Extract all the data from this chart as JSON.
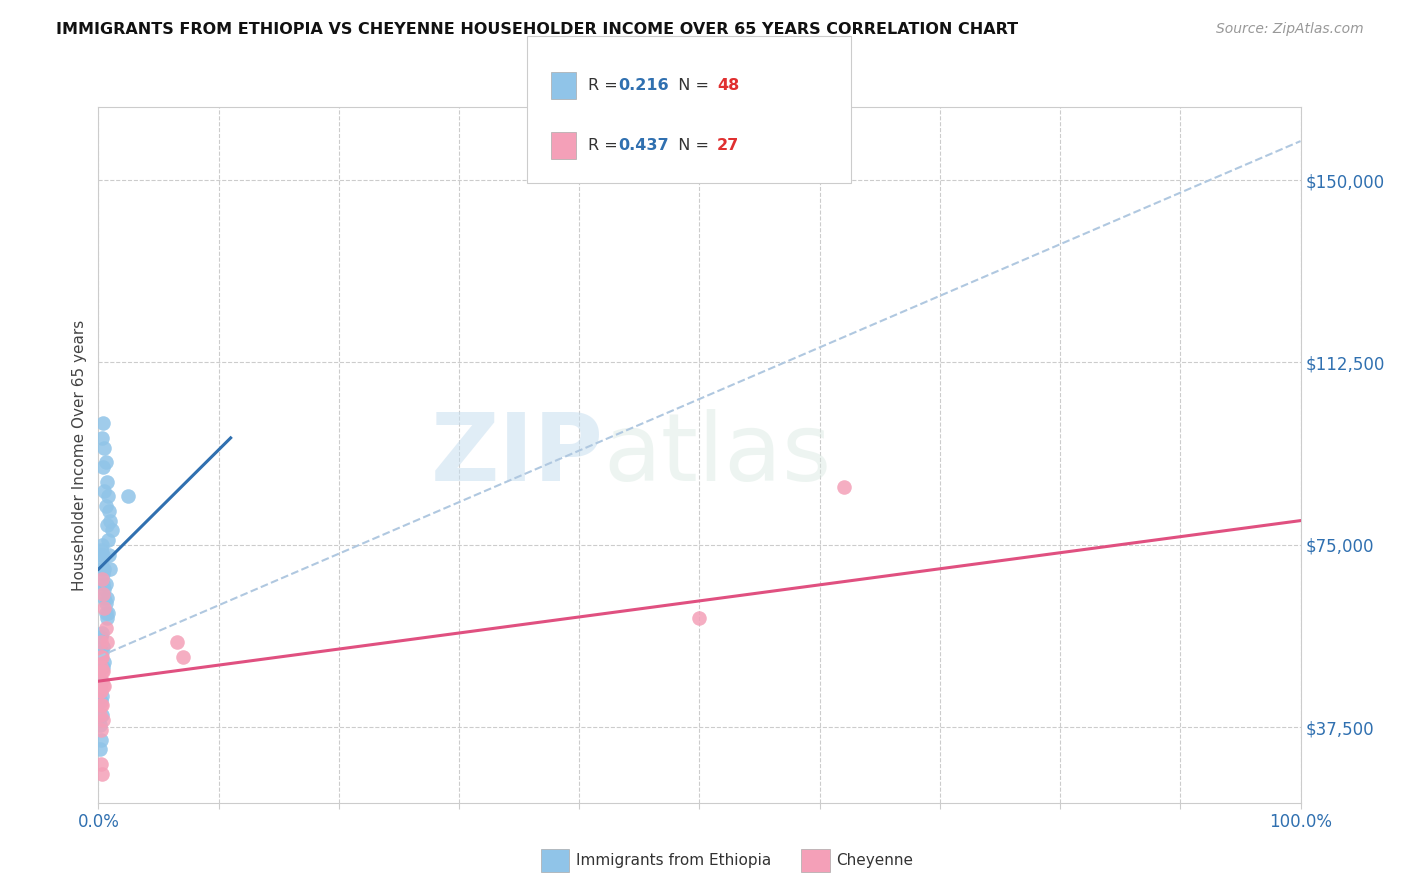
{
  "title": "IMMIGRANTS FROM ETHIOPIA VS CHEYENNE HOUSEHOLDER INCOME OVER 65 YEARS CORRELATION CHART",
  "source": "Source: ZipAtlas.com",
  "ylabel": "Householder Income Over 65 years",
  "xlim": [
    0.0,
    1.0
  ],
  "ylim": [
    22000,
    165000
  ],
  "y_tick_values": [
    37500,
    75000,
    112500,
    150000
  ],
  "y_tick_labels": [
    "$37,500",
    "$75,000",
    "$112,500",
    "$150,000"
  ],
  "grid_color": "#cccccc",
  "background_color": "#ffffff",
  "watermark_zip": "ZIP",
  "watermark_atlas": "atlas",
  "legend_R1": "0.216",
  "legend_N1": "48",
  "legend_R2": "0.437",
  "legend_N2": "27",
  "blue_color": "#90c4e8",
  "pink_color": "#f4a0b8",
  "blue_line_color": "#3070b0",
  "pink_line_color": "#e05080",
  "dash_line_color": "#b0c8e0",
  "scatter_blue_x": [
    0.004,
    0.005,
    0.006,
    0.007,
    0.008,
    0.009,
    0.01,
    0.011,
    0.003,
    0.004,
    0.005,
    0.006,
    0.007,
    0.008,
    0.009,
    0.01,
    0.003,
    0.004,
    0.005,
    0.006,
    0.007,
    0.008,
    0.002,
    0.003,
    0.004,
    0.005,
    0.006,
    0.007,
    0.002,
    0.003,
    0.004,
    0.005,
    0.006,
    0.003,
    0.004,
    0.005,
    0.002,
    0.003,
    0.004,
    0.002,
    0.003,
    0.001,
    0.002,
    0.003,
    0.001,
    0.002,
    0.025,
    0.001
  ],
  "scatter_blue_y": [
    100000,
    95000,
    92000,
    88000,
    85000,
    82000,
    80000,
    78000,
    97000,
    91000,
    86000,
    83000,
    79000,
    76000,
    73000,
    70000,
    75000,
    73000,
    70000,
    67000,
    64000,
    61000,
    74000,
    72000,
    69000,
    66000,
    63000,
    60000,
    73000,
    70000,
    67000,
    64000,
    61000,
    57000,
    54000,
    51000,
    56000,
    53000,
    50000,
    47000,
    44000,
    46000,
    43000,
    40000,
    38000,
    35000,
    85000,
    33000
  ],
  "scatter_pink_x": [
    0.003,
    0.004,
    0.005,
    0.006,
    0.007,
    0.002,
    0.003,
    0.004,
    0.005,
    0.002,
    0.003,
    0.004,
    0.002,
    0.003,
    0.002,
    0.003,
    0.004,
    0.001,
    0.002,
    0.001,
    0.002,
    0.065,
    0.07,
    0.5,
    0.62,
    0.002,
    0.003
  ],
  "scatter_pink_y": [
    68000,
    65000,
    62000,
    58000,
    55000,
    55000,
    52000,
    49000,
    46000,
    52000,
    49000,
    46000,
    50000,
    47000,
    45000,
    42000,
    39000,
    45000,
    42000,
    40000,
    37000,
    55000,
    52000,
    60000,
    87000,
    30000,
    28000
  ],
  "blue_trendline_x": [
    0.0,
    0.11
  ],
  "blue_trendline_y": [
    70000,
    97000
  ],
  "dash_trendline_x": [
    0.0,
    1.0
  ],
  "dash_trendline_y": [
    52000,
    158000
  ],
  "pink_trendline_x": [
    0.0,
    1.0
  ],
  "pink_trendline_y": [
    47000,
    80000
  ]
}
